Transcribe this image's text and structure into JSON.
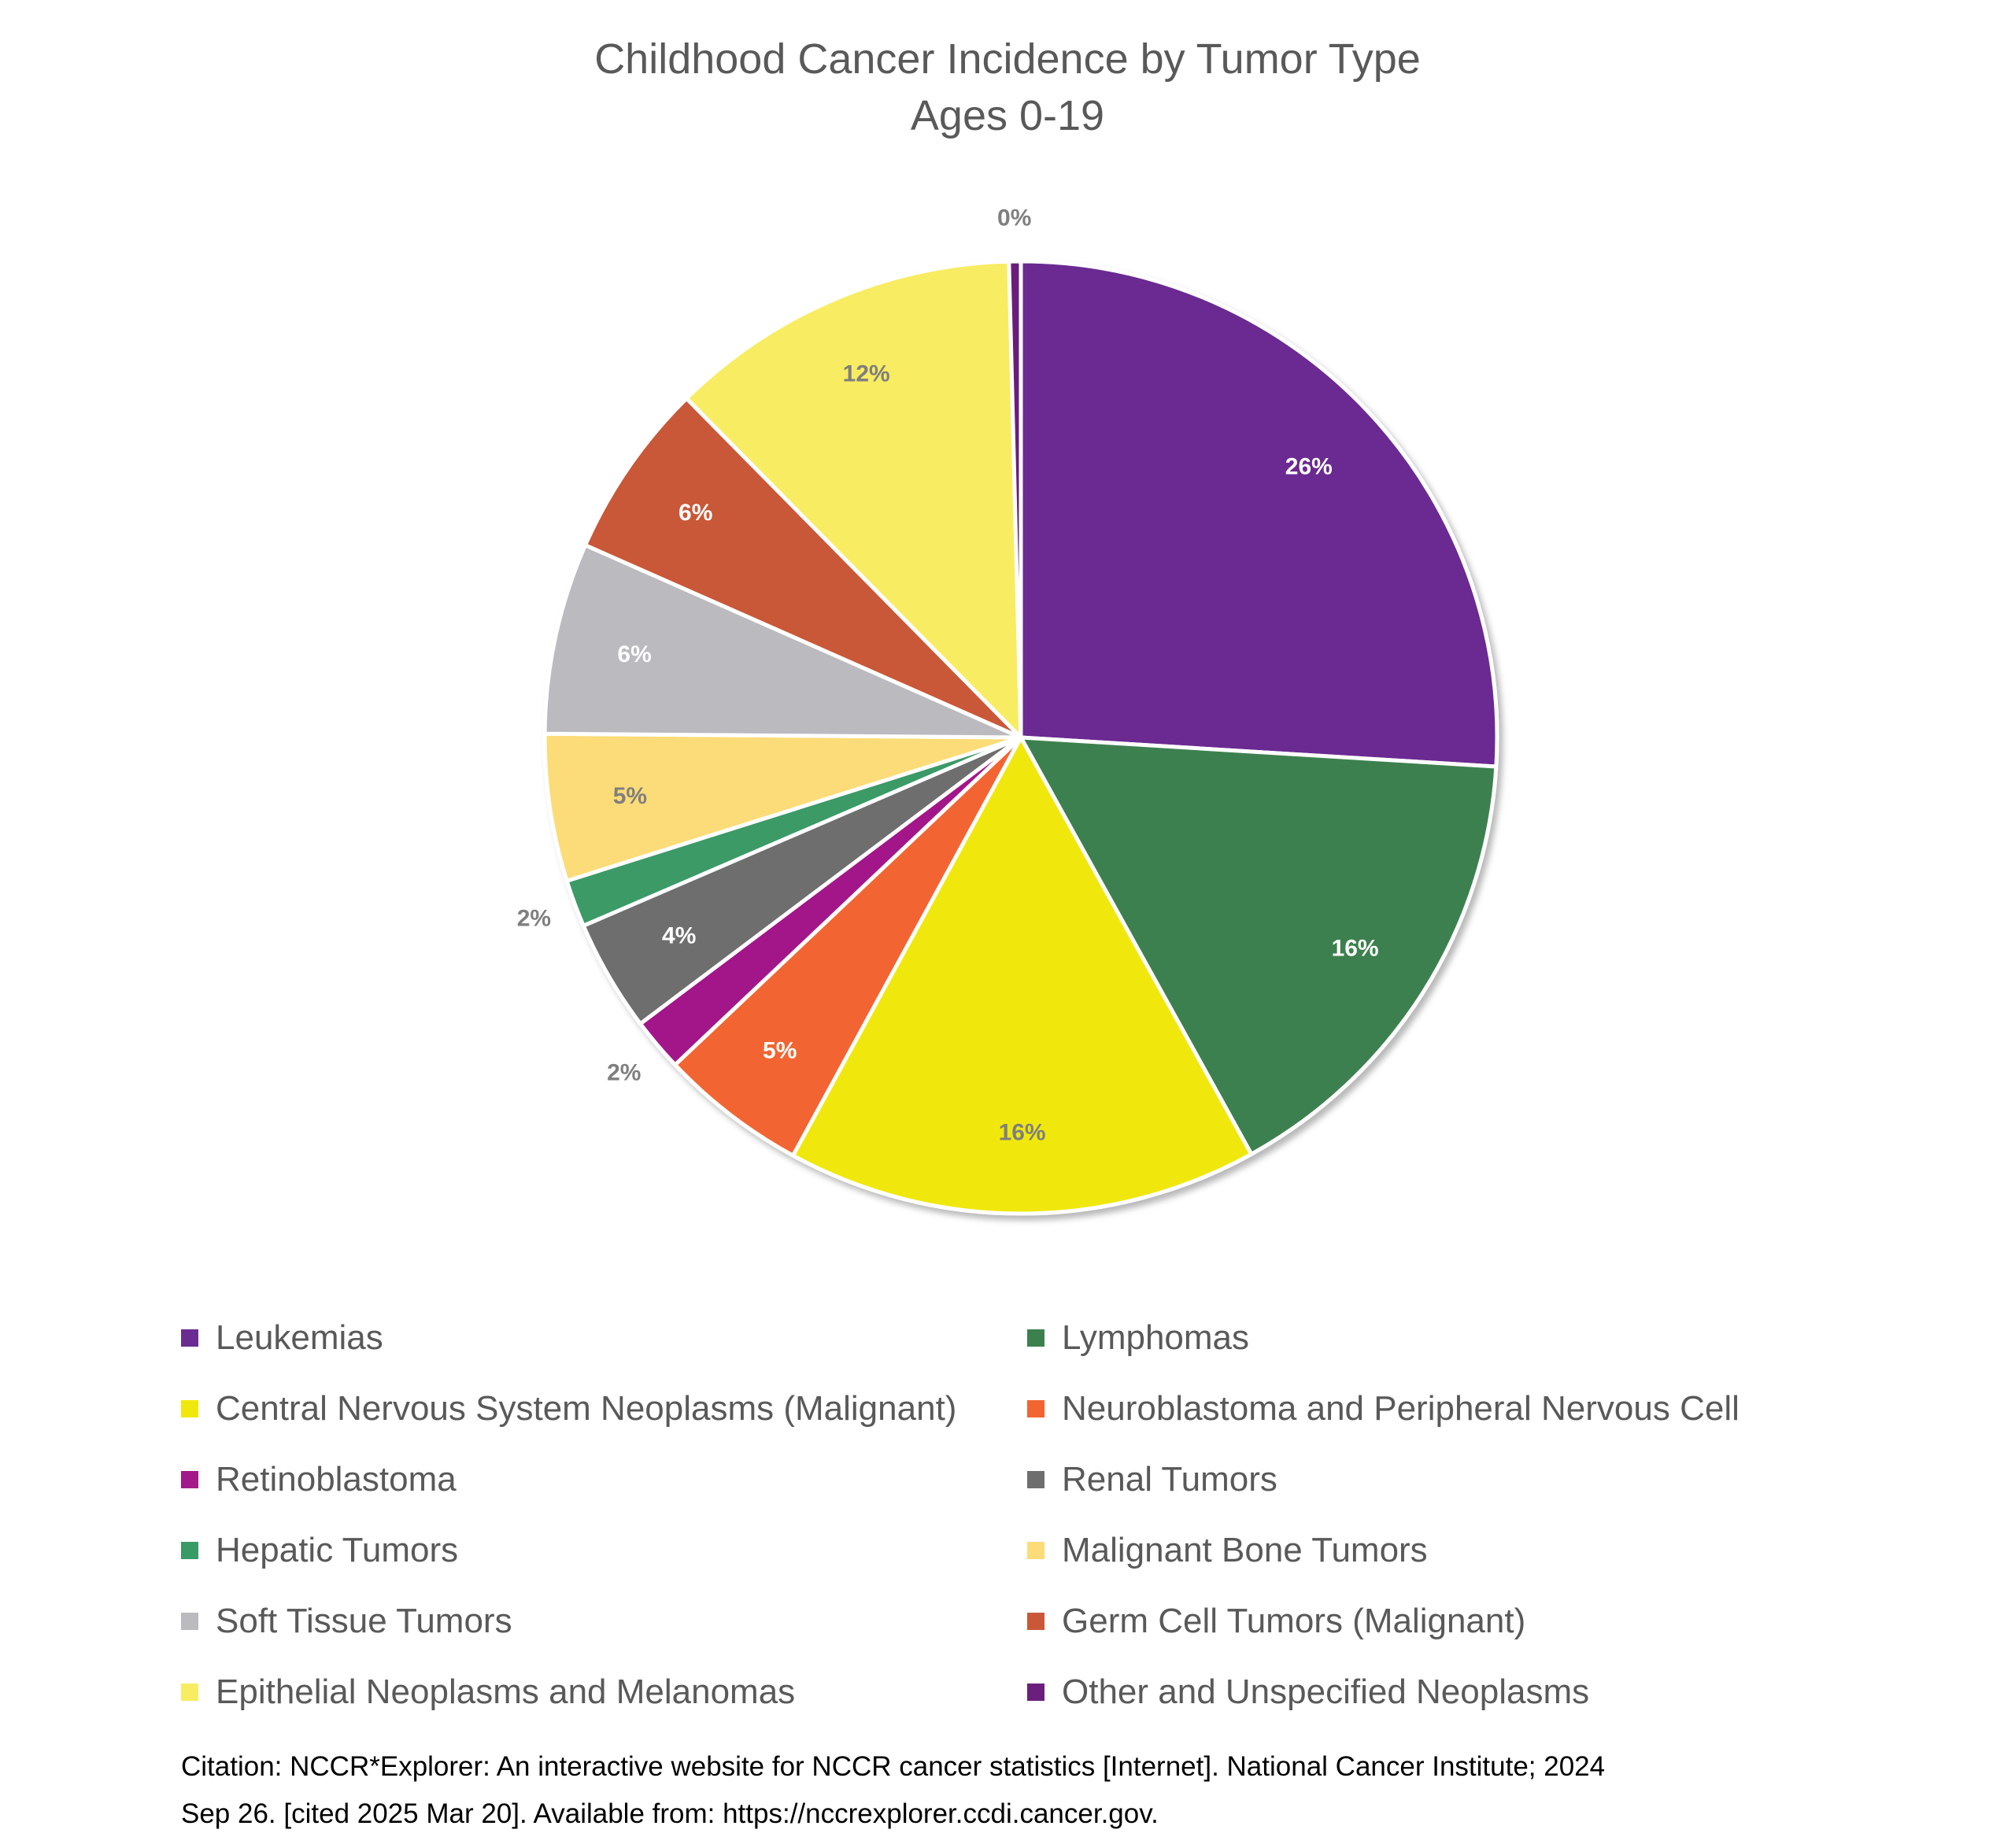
{
  "chart_data": {
    "type": "pie",
    "title": "Childhood Cancer Incidence by Tumor Type",
    "subtitle": "Ages 0-19",
    "legend_position": "bottom",
    "labels_format": "percent",
    "slices": [
      {
        "label": "Leukemias",
        "value": 26,
        "display": "26%",
        "color": "#6b2c91",
        "label_color": "#ffffff"
      },
      {
        "label": "Lymphomas",
        "value": 16,
        "display": "16%",
        "color": "#3d8050",
        "label_color": "#ffffff"
      },
      {
        "label": "Central Nervous System Neoplasms (Malignant)",
        "value": 16,
        "display": "16%",
        "color": "#f0e80c",
        "label_color": "#7f7f7f"
      },
      {
        "label": "Neuroblastoma and Peripheral Nervous Cell",
        "value": 5,
        "display": "5%",
        "color": "#f26531",
        "label_color": "#ffffff"
      },
      {
        "label": "Retinoblastoma",
        "value": 1.8,
        "display": "2%",
        "color": "#a2198a",
        "label_color": "#7f7f7f"
      },
      {
        "label": "Renal Tumors",
        "value": 3.8,
        "display": "4%",
        "color": "#6e6e6e",
        "label_color": "#ffffff"
      },
      {
        "label": "Hepatic Tumors",
        "value": 1.6,
        "display": "2%",
        "color": "#3a9a66",
        "label_color": "#7f7f7f"
      },
      {
        "label": "Malignant Bone Tumors",
        "value": 5,
        "display": "5%",
        "color": "#fcdc78",
        "label_color": "#7f7f7f"
      },
      {
        "label": "Soft Tissue Tumors",
        "value": 6.5,
        "display": "6%",
        "color": "#bbbabf",
        "label_color": "#ffffff"
      },
      {
        "label": "Germ Cell Tumors (Malignant)",
        "value": 6,
        "display": "6%",
        "color": "#c95837",
        "label_color": "#ffffff"
      },
      {
        "label": "Epithelial Neoplasms and Melanomas",
        "value": 12,
        "display": "12%",
        "color": "#f8ec62",
        "label_color": "#7f7f7f"
      },
      {
        "label": "Other and Unspecified Neoplasms",
        "value": 0.4,
        "display": "0%",
        "color": "#6b1f7c",
        "label_color": "#7f7f7f"
      }
    ]
  },
  "citation": {
    "line1": "Citation: NCCR*Explorer: An interactive website for NCCR cancer statistics [Internet]. National Cancer Institute; 2024",
    "line2": "Sep 26. [cited 2025 Mar 20]. Available from: https://nccrexplorer.ccdi.cancer.gov."
  }
}
